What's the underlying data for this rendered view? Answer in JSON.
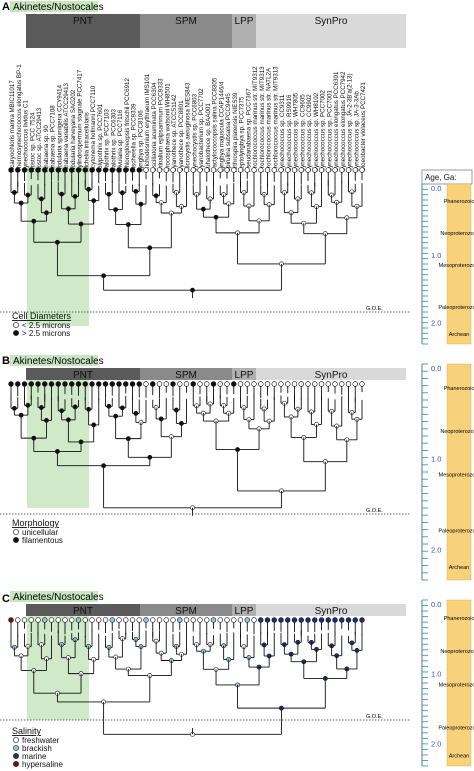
{
  "colors": {
    "akinetes_bg": "#c8e6c0",
    "pnt_dark": "#5a5a5a",
    "spm_gray": "#8a8a8a",
    "lpp_gray": "#b0b0b0",
    "synpro_light": "#d9d9d9",
    "eon_bar": "#f7d27a",
    "freshwater": "#ffffff",
    "brackish": "#8fd0d8",
    "marine": "#1d2f7a",
    "hypersaline": "#7a1010"
  },
  "panels": [
    {
      "letter": "A",
      "akinetes_label": "Akinetes/Nostocales",
      "clades": [
        "PNT",
        "SPM",
        "LPP",
        "SynPro"
      ],
      "legend_title": "Cell Diameters",
      "legend_items": [
        "< 2.5 microns",
        "> 2.5 microns"
      ],
      "goe_label": "G.O.E.",
      "age_header": "Age, Ga:",
      "ticks": [
        "0.0",
        "1.0",
        "2.0"
      ],
      "eons": [
        "Phanerozoic",
        "Neoproterozoic",
        "Mesoproterozoic",
        "Paleoproterozoic",
        "Archean"
      ]
    },
    {
      "letter": "B",
      "akinetes_label": "Akinetes/Nostocales",
      "clades": [
        "PNT",
        "SPM",
        "LPP",
        "SynPro"
      ],
      "legend_title": "Morphology",
      "legend_items": [
        "unicellular",
        "filamentous"
      ],
      "goe_label": "G.O.E.",
      "ticks": [
        "0.0",
        "1.0",
        "2.0"
      ],
      "eons": [
        "Phanerozoic",
        "Neoproterozoic",
        "Mesoproterozoic",
        "Paleoproterozoic",
        "Archean"
      ]
    },
    {
      "letter": "C",
      "akinetes_label": "Akinetes/Nostocales",
      "clades": [
        "PNT",
        "SPM",
        "LPP",
        "SynPro"
      ],
      "legend_title": "Salinity",
      "legend_items": [
        "freshwater",
        "brackish",
        "marine",
        "hypersaline"
      ],
      "goe_label": "G.O.E.",
      "ticks": [
        "0.0",
        "1.0",
        "2.0"
      ],
      "eons": [
        "Phanerozoic",
        "Neoproterozoic",
        "Mesoproterozoic",
        "Paleoproterozoic",
        "Archean"
      ]
    }
  ],
  "taxa": [
    "Acaryochloris marina MBIC11017",
    "Thermosynechococcus elongatus BP-1",
    "Synechococcus lividus C1",
    "Nostoc sp. PCC 7524",
    "Nostoc sp. ATCC29413",
    "Anabaena sp. 90",
    "Anabaena sp. PCC7108",
    "Nodularia spumigena CCY9414",
    "Anabaena variabilis ATCC29413",
    "Nodularia harveyana SAG202",
    "Cylindrospermum stagnale PCC7417",
    "Richelia intracellularis",
    "Scytonema hofmanni PCC7110",
    "Tolypothrix sp. PCC7601",
    "Calothrix sp. PCC7103",
    "Calothrix sp. PCC6303",
    "Rivularia sp. PCC7116",
    "Chlorogloeopsis fritschii PCC6912",
    "Fischerella sp. PCC9339",
    "Lyngbya sp. PCC8106",
    "Trichodesmium erythraeum IMS101",
    "Oscillatoria acuminata PCC6304",
    "Crinalium epipsammum PCC9333",
    "Crocosphaera watsonii WH8501",
    "Cyanothece sp. ATCC51142",
    "Cyanothece sp. PCC8801",
    "Microcystis aeruginosa NIES843",
    "Synechocystis sp. PCC6803",
    "Cyanobacterium sp. PCC7702",
    "Euhalothece sp. BAA001",
    "Dactylococcopsis salina PCC8305",
    "Lyngbya majuscula CCAP1446/4",
    "Spirulina subsalsa PCC9445",
    "Arthrospira platensis NIES39",
    "Leptolyngbya sp. PCC7375",
    "Pseudanabaena sp. PCC7367",
    "Prochlorococcus marinus str. MIT9312",
    "Prochlorococcus marinus str. MIT9313",
    "Prochlorococcus marinus str. NATL2A",
    "Prochlorococcus marinus str. MIT9313",
    "Synechococcus sp. CC9311",
    "Synechococcus sp. RS9916",
    "Synechococcus sp. WH7805",
    "Synechococcus sp. CC9605",
    "Synechococcus sp. CC9902",
    "Synechococcus sp. WH8102",
    "Synechococcus sp. PCC7002",
    "Synechococcus sp. PCC7001",
    "Synechococcus elongatus PCC6301",
    "Synechococcus elongatus PCC7942",
    "Synechococcus sp. JA-2-3B'a(2-13)",
    "Synechococcus sp. JA-3-3Ab",
    "Gloeobacter violaceus PCC7421"
  ]
}
